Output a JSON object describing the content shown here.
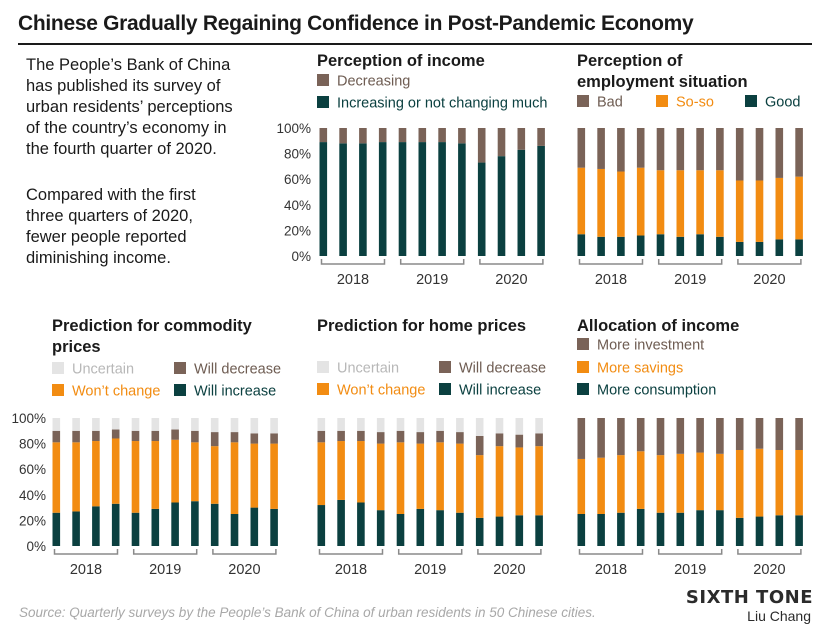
{
  "title": "Chinese Gradually Regaining Confidence in Post-Pandemic Economy",
  "intro": {
    "lines_1": [
      "The People’s Bank of China",
      "has published its survey of",
      "urban residents’ perceptions",
      "of the country’s economy in",
      "the fourth quarter of 2020."
    ],
    "lines_2": [
      "Compared with the first",
      "three quarters of 2020,",
      "fewer people reported",
      "diminishing income."
    ]
  },
  "source": "Source: Quarterly surveys by the People’s Bank of China of urban residents in 50 Chinese cities.",
  "brand": "SIXTH TONE",
  "author": "Liu Chang",
  "colors": {
    "dark_green": "#0b4040",
    "orange": "#f28c12",
    "brown": "#7a6358",
    "light_gray": "#e4e4e4",
    "axis": "#8a8a8a"
  },
  "chart_data": [
    {
      "id": "income",
      "type": "bar",
      "stacked": true,
      "title": "Perception of income",
      "title_lines": [
        "Perception of income"
      ],
      "legend": [
        [
          {
            "label": "Decreasing",
            "color": "#7a6358"
          }
        ],
        [
          {
            "label": "Increasing or not changing much",
            "color": "#0b4040"
          }
        ]
      ],
      "categories": [
        "2018 Q1",
        "2018 Q2",
        "2018 Q3",
        "2018 Q4",
        "2019 Q1",
        "2019 Q2",
        "2019 Q3",
        "2019 Q4",
        "2020 Q1",
        "2020 Q2",
        "2020 Q3",
        "2020 Q4"
      ],
      "year_labels": [
        "2018",
        "2019",
        "2020"
      ],
      "yticks": [
        "0%",
        "20%",
        "40%",
        "60%",
        "80%",
        "100%"
      ],
      "ylim": [
        0,
        100
      ],
      "series": [
        {
          "name": "Increasing or not changing much",
          "color": "#0b4040",
          "values": [
            89,
            88,
            88,
            89,
            89,
            89,
            89,
            88,
            73,
            78,
            83,
            86
          ]
        },
        {
          "name": "Decreasing",
          "color": "#7a6358",
          "values": [
            11,
            12,
            12,
            11,
            11,
            11,
            11,
            12,
            27,
            22,
            17,
            14
          ]
        }
      ]
    },
    {
      "id": "employment",
      "type": "bar",
      "stacked": true,
      "title": "Perception of employment situation",
      "title_lines": [
        "Perception of",
        "employment situation"
      ],
      "legend": [
        [
          {
            "label": "Bad",
            "color": "#7a6358"
          },
          {
            "label": "So-so",
            "color": "#f28c12"
          },
          {
            "label": "Good",
            "color": "#0b4040"
          }
        ]
      ],
      "categories": [
        "2018 Q1",
        "2018 Q2",
        "2018 Q3",
        "2018 Q4",
        "2019 Q1",
        "2019 Q2",
        "2019 Q3",
        "2019 Q4",
        "2020 Q1",
        "2020 Q2",
        "2020 Q3",
        "2020 Q4"
      ],
      "year_labels": [
        "2018",
        "2019",
        "2020"
      ],
      "ylim": [
        0,
        100
      ],
      "series": [
        {
          "name": "Good",
          "color": "#0b4040",
          "values": [
            17,
            15,
            15,
            16,
            17,
            15,
            17,
            15,
            11,
            11,
            13,
            13
          ]
        },
        {
          "name": "So-so",
          "color": "#f28c12",
          "values": [
            52,
            53,
            51,
            53,
            50,
            52,
            50,
            52,
            48,
            48,
            48,
            49
          ]
        },
        {
          "name": "Bad",
          "color": "#7a6358",
          "values": [
            31,
            32,
            34,
            31,
            33,
            33,
            33,
            33,
            41,
            41,
            39,
            38
          ]
        }
      ]
    },
    {
      "id": "commodity",
      "type": "bar",
      "stacked": true,
      "title": "Prediction for commodity prices",
      "title_lines": [
        "Prediction for commodity",
        "prices"
      ],
      "legend": [
        [
          {
            "label": "Uncertain",
            "color": "#e4e4e4"
          },
          {
            "label": "Will decrease",
            "color": "#7a6358"
          }
        ],
        [
          {
            "label": "Won’t change",
            "color": "#f28c12"
          },
          {
            "label": "Will increase",
            "color": "#0b4040"
          }
        ]
      ],
      "categories": [
        "2018 Q1",
        "2018 Q2",
        "2018 Q3",
        "2018 Q4",
        "2019 Q1",
        "2019 Q2",
        "2019 Q3",
        "2019 Q4",
        "2020 Q1",
        "2020 Q2",
        "2020 Q3",
        "2020 Q4"
      ],
      "year_labels": [
        "2018",
        "2019",
        "2020"
      ],
      "yticks": [
        "0%",
        "20%",
        "40%",
        "60%",
        "80%",
        "100%"
      ],
      "ylim": [
        0,
        100
      ],
      "series": [
        {
          "name": "Will increase",
          "color": "#0b4040",
          "values": [
            26,
            27,
            31,
            33,
            26,
            29,
            34,
            35,
            33,
            25,
            30,
            29
          ]
        },
        {
          "name": "Won’t change",
          "color": "#f28c12",
          "values": [
            55,
            54,
            51,
            51,
            56,
            53,
            49,
            46,
            45,
            56,
            50,
            51
          ]
        },
        {
          "name": "Will decrease",
          "color": "#7a6358",
          "values": [
            9,
            9,
            8,
            7,
            8,
            8,
            8,
            9,
            11,
            8,
            8,
            8
          ]
        },
        {
          "name": "Uncertain",
          "color": "#e4e4e4",
          "values": [
            10,
            10,
            10,
            9,
            10,
            10,
            9,
            10,
            11,
            11,
            12,
            12
          ]
        }
      ]
    },
    {
      "id": "home_prices",
      "type": "bar",
      "stacked": true,
      "title": "Prediction for home prices",
      "title_lines": [
        "Prediction for home prices"
      ],
      "legend": [
        [
          {
            "label": "Uncertain",
            "color": "#e4e4e4"
          },
          {
            "label": "Will decrease",
            "color": "#7a6358"
          }
        ],
        [
          {
            "label": "Won’t change",
            "color": "#f28c12"
          },
          {
            "label": "Will increase",
            "color": "#0b4040"
          }
        ]
      ],
      "categories": [
        "2018 Q1",
        "2018 Q2",
        "2018 Q3",
        "2018 Q4",
        "2019 Q1",
        "2019 Q2",
        "2019 Q3",
        "2019 Q4",
        "2020 Q1",
        "2020 Q2",
        "2020 Q3",
        "2020 Q4"
      ],
      "year_labels": [
        "2018",
        "2019",
        "2020"
      ],
      "ylim": [
        0,
        100
      ],
      "series": [
        {
          "name": "Will increase",
          "color": "#0b4040",
          "values": [
            32,
            36,
            34,
            28,
            25,
            29,
            28,
            26,
            22,
            23,
            24,
            24
          ]
        },
        {
          "name": "Won’t change",
          "color": "#f28c12",
          "values": [
            49,
            46,
            48,
            52,
            56,
            51,
            53,
            54,
            49,
            55,
            53,
            54
          ]
        },
        {
          "name": "Will decrease",
          "color": "#7a6358",
          "values": [
            9,
            8,
            8,
            9,
            9,
            9,
            9,
            9,
            15,
            10,
            10,
            10
          ]
        },
        {
          "name": "Uncertain",
          "color": "#e4e4e4",
          "values": [
            10,
            10,
            10,
            11,
            10,
            11,
            10,
            11,
            14,
            12,
            13,
            12
          ]
        }
      ]
    },
    {
      "id": "allocation",
      "type": "bar",
      "stacked": true,
      "title": "Allocation of income",
      "title_lines": [
        "Allocation of income"
      ],
      "legend": [
        [
          {
            "label": "More investment",
            "color": "#7a6358"
          }
        ],
        [
          {
            "label": "More savings",
            "color": "#f28c12"
          }
        ],
        [
          {
            "label": "More consumption",
            "color": "#0b4040"
          }
        ]
      ],
      "categories": [
        "2018 Q1",
        "2018 Q2",
        "2018 Q3",
        "2018 Q4",
        "2019 Q1",
        "2019 Q2",
        "2019 Q3",
        "2019 Q4",
        "2020 Q1",
        "2020 Q2",
        "2020 Q3",
        "2020 Q4"
      ],
      "year_labels": [
        "2018",
        "2019",
        "2020"
      ],
      "ylim": [
        0,
        100
      ],
      "series": [
        {
          "name": "More consumption",
          "color": "#0b4040",
          "values": [
            25,
            25,
            26,
            29,
            26,
            26,
            28,
            28,
            22,
            23,
            24,
            24
          ]
        },
        {
          "name": "More savings",
          "color": "#f28c12",
          "values": [
            43,
            44,
            45,
            45,
            45,
            46,
            45,
            44,
            53,
            53,
            51,
            51
          ]
        },
        {
          "name": "More investment",
          "color": "#7a6358",
          "values": [
            32,
            31,
            29,
            26,
            29,
            28,
            27,
            28,
            25,
            24,
            25,
            25
          ]
        }
      ]
    }
  ]
}
